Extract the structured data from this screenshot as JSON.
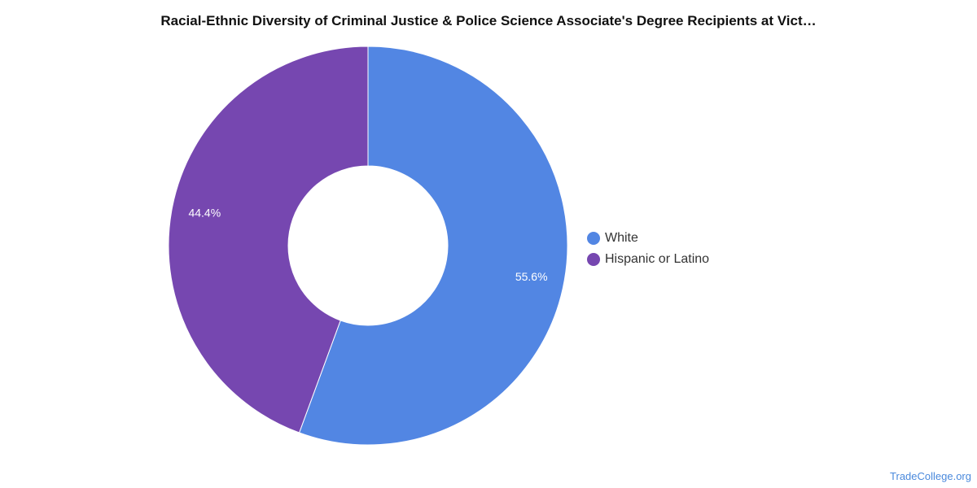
{
  "chart_data": {
    "type": "pie",
    "title": "Racial-Ethnic Diversity of Criminal Justice & Police Science Associate's Degree Recipients at Vict…",
    "donut": true,
    "slices": [
      {
        "name": "White",
        "value": 55.6,
        "label": "55.6%",
        "color": "#5286e3"
      },
      {
        "name": "Hispanic or Latino",
        "value": 44.4,
        "label": "44.4%",
        "color": "#7647b0"
      }
    ],
    "legend_position": "right"
  },
  "source": "TradeCollege.org"
}
